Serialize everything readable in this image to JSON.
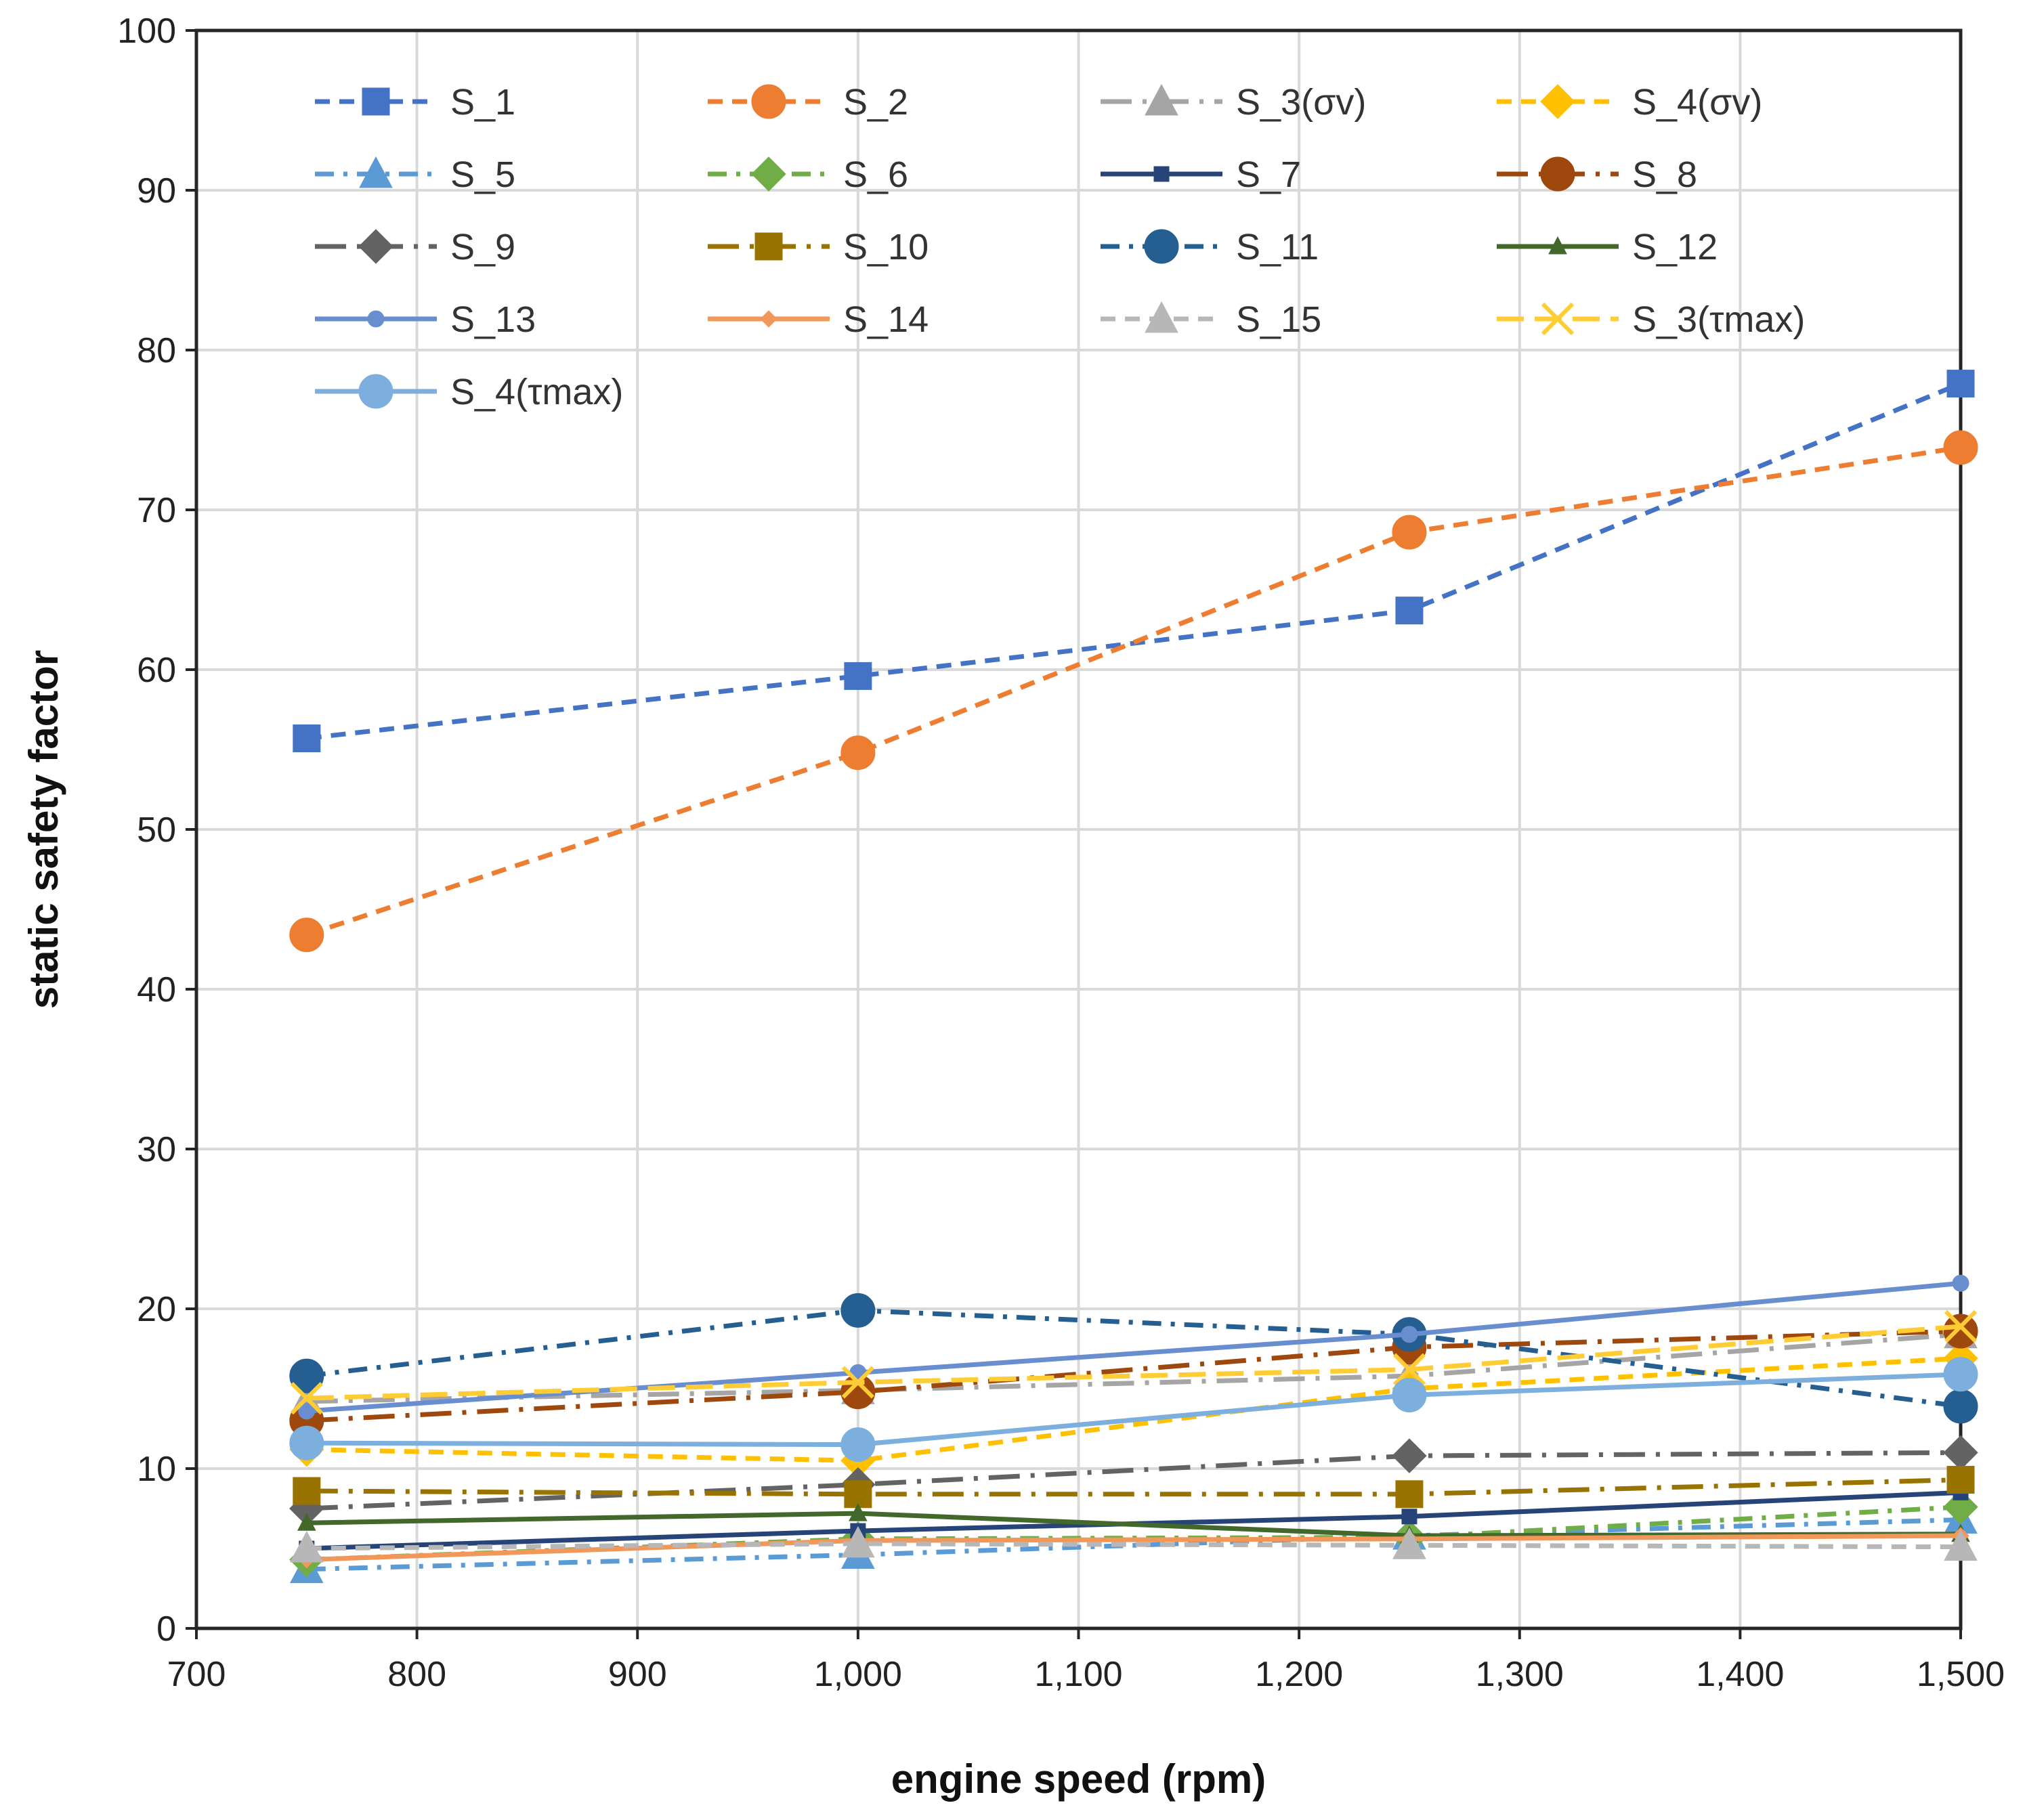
{
  "chart_data": {
    "type": "line",
    "xlabel": "engine speed (rpm)",
    "ylabel": "static safety factor",
    "xlim": [
      700,
      1500
    ],
    "ylim": [
      0,
      100
    ],
    "x_ticks": [
      "700",
      "800",
      "900",
      "1,000",
      "1,100",
      "1,200",
      "1,300",
      "1,400",
      "1,500"
    ],
    "y_ticks": [
      "0",
      "10",
      "20",
      "30",
      "40",
      "50",
      "60",
      "70",
      "80",
      "90",
      "100"
    ],
    "grid": true,
    "legend_position": "top-left",
    "x": [
      750,
      1000,
      1250,
      1500
    ],
    "series": [
      {
        "name": "S_1",
        "color": "#4472C4",
        "dash": "dash",
        "marker": "square",
        "values": [
          55.7,
          59.6,
          63.7,
          77.9
        ]
      },
      {
        "name": "S_2",
        "color": "#ED7D31",
        "dash": "dash",
        "marker": "circle",
        "values": [
          43.4,
          54.8,
          68.6,
          73.9
        ]
      },
      {
        "name": "S_3(σv)",
        "color": "#A5A5A5",
        "dash": "longdashdot",
        "marker": "triangle",
        "values": [
          14.2,
          14.9,
          15.8,
          18.4
        ]
      },
      {
        "name": "S_4(σv)",
        "color": "#FFC000",
        "dash": "dash",
        "marker": "diamond",
        "values": [
          11.2,
          10.5,
          15.0,
          16.9
        ]
      },
      {
        "name": "S_5",
        "color": "#5B9BD5",
        "dash": "dashdot",
        "marker": "triangle",
        "values": [
          3.7,
          4.6,
          5.8,
          6.8
        ]
      },
      {
        "name": "S_6",
        "color": "#70AD47",
        "dash": "dashdot",
        "marker": "diamond",
        "values": [
          4.3,
          5.6,
          5.7,
          7.6
        ]
      },
      {
        "name": "S_7",
        "color": "#264478",
        "dash": "solid",
        "marker": "smallsquare",
        "values": [
          5.0,
          6.1,
          7.0,
          8.5
        ]
      },
      {
        "name": "S_8",
        "color": "#9E480E",
        "dash": "longdashdot",
        "marker": "circle",
        "values": [
          13.0,
          14.8,
          17.6,
          18.6
        ]
      },
      {
        "name": "S_9",
        "color": "#636363",
        "dash": "longdashdot",
        "marker": "diamond",
        "values": [
          7.5,
          9.0,
          10.8,
          11.0
        ]
      },
      {
        "name": "S_10",
        "color": "#997300",
        "dash": "longdashdot",
        "marker": "square",
        "values": [
          8.6,
          8.4,
          8.4,
          9.3
        ]
      },
      {
        "name": "S_11",
        "color": "#255E91",
        "dash": "dashdot",
        "marker": "circle",
        "values": [
          15.8,
          19.9,
          18.4,
          13.9
        ]
      },
      {
        "name": "S_12",
        "color": "#43682B",
        "dash": "solid",
        "marker": "smalltriangle",
        "values": [
          6.6,
          7.2,
          5.8,
          5.9
        ]
      },
      {
        "name": "S_13",
        "color": "#698ED0",
        "dash": "solid",
        "marker": "smallcircle",
        "values": [
          13.6,
          16.0,
          18.4,
          21.6
        ]
      },
      {
        "name": "S_14",
        "color": "#F1975A",
        "dash": "solid",
        "marker": "smalldiamond",
        "values": [
          4.3,
          5.5,
          5.6,
          5.8
        ]
      },
      {
        "name": "S_15",
        "color": "#B7B7B7",
        "dash": "dash",
        "marker": "triangle",
        "values": [
          5.0,
          5.3,
          5.2,
          5.1
        ]
      },
      {
        "name": "S_3(τmax)",
        "color": "#FFCD33",
        "dash": "longdash",
        "marker": "x",
        "values": [
          14.4,
          15.4,
          16.2,
          18.9
        ]
      },
      {
        "name": "S_4(τmax)",
        "color": "#7CAFDD",
        "dash": "solid",
        "marker": "circle",
        "values": [
          11.6,
          11.5,
          14.6,
          15.9
        ]
      }
    ]
  }
}
